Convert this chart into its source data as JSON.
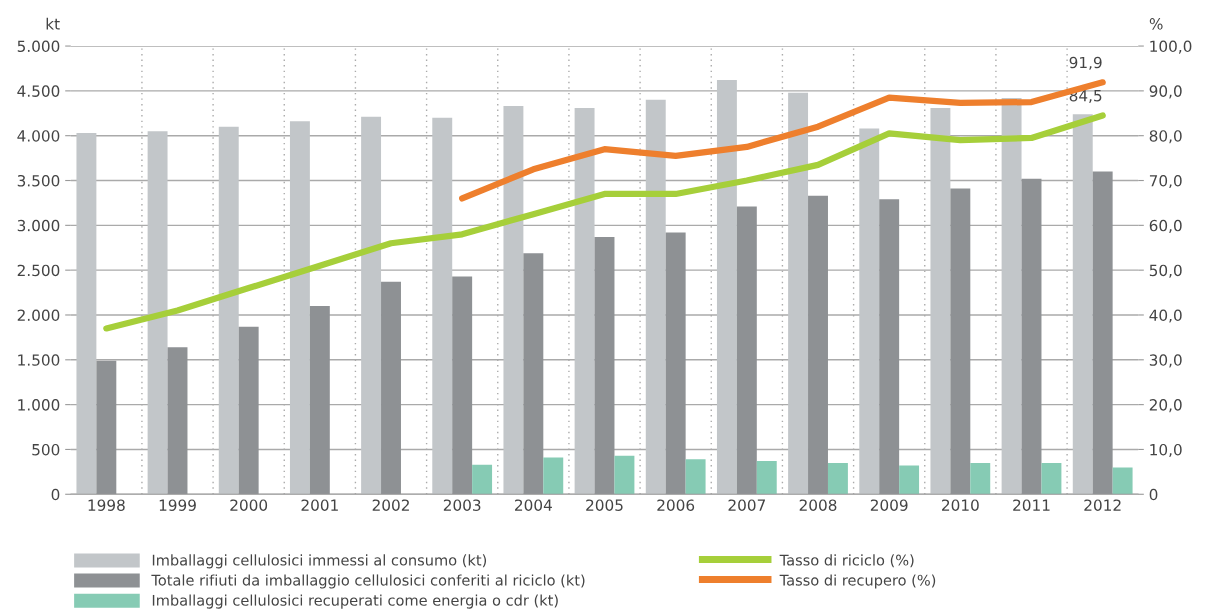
{
  "chart_data": {
    "type": "bar",
    "ylabel": "kt",
    "y2label": "%",
    "categories": [
      "1998",
      "1999",
      "2000",
      "2001",
      "2002",
      "2003",
      "2004",
      "2005",
      "2006",
      "2007",
      "2008",
      "2009",
      "2010",
      "2011",
      "2012"
    ],
    "series": [
      {
        "name": "Imballaggi cellulosici immessi al consumo (kt)",
        "color": "#c2c6c9",
        "values": [
          4030,
          4050,
          4100,
          4160,
          4210,
          4200,
          4330,
          4310,
          4400,
          4620,
          4480,
          4080,
          4310,
          4420,
          4240
        ]
      },
      {
        "name": "Totale rifiuti da imballaggio cellulosici conferiti al riciclo (kt)",
        "color": "#8e9194",
        "values": [
          1490,
          1640,
          1870,
          2100,
          2370,
          2430,
          2690,
          2870,
          2920,
          3210,
          3330,
          3290,
          3410,
          3520,
          3600
        ]
      },
      {
        "name": "Imballaggi cellulosici recuperati come energia o cdr (kt)",
        "color": "#86cbb4",
        "values": [
          null,
          null,
          null,
          null,
          null,
          330,
          410,
          430,
          390,
          370,
          350,
          320,
          350,
          350,
          300
        ]
      },
      {
        "name": "Tasso di riciclo (%)",
        "type": "line",
        "axis": "y2",
        "color": "#a6cf3a",
        "values": [
          37.0,
          41.0,
          46.0,
          51.0,
          56.0,
          58.0,
          62.5,
          67.0,
          67.0,
          70.0,
          73.5,
          80.5,
          79.0,
          79.5,
          84.5
        ],
        "value_labels": [
          null,
          null,
          null,
          null,
          null,
          null,
          null,
          null,
          null,
          null,
          null,
          null,
          null,
          null,
          "84,5"
        ]
      },
      {
        "name": "Tasso di recupero (%)",
        "type": "line",
        "axis": "y2",
        "color": "#ee7f2d",
        "values": [
          null,
          null,
          null,
          null,
          null,
          66.0,
          72.5,
          77.0,
          75.5,
          77.5,
          82.0,
          88.5,
          87.3,
          87.5,
          91.9
        ],
        "value_labels": [
          null,
          null,
          null,
          null,
          null,
          null,
          null,
          null,
          null,
          null,
          null,
          null,
          null,
          null,
          "91,9"
        ]
      }
    ],
    "ylim": [
      0,
      5000
    ],
    "yticks": [
      {
        "value": 0,
        "label": "0"
      },
      {
        "value": 500,
        "label": "500"
      },
      {
        "value": 1000,
        "label": "1.000"
      },
      {
        "value": 1500,
        "label": "1.500"
      },
      {
        "value": 2000,
        "label": "2.000"
      },
      {
        "value": 2500,
        "label": "2.500"
      },
      {
        "value": 3000,
        "label": "3.000"
      },
      {
        "value": 3500,
        "label": "3.500"
      },
      {
        "value": 4000,
        "label": "4.000"
      },
      {
        "value": 4500,
        "label": "4.500"
      },
      {
        "value": 5000,
        "label": "5.000"
      }
    ],
    "y2lim": [
      0,
      100
    ],
    "y2ticks": [
      {
        "value": 0,
        "label": "0"
      },
      {
        "value": 10,
        "label": "10,0"
      },
      {
        "value": 20,
        "label": "20,0"
      },
      {
        "value": 30,
        "label": "30,0"
      },
      {
        "value": 40,
        "label": "40,0"
      },
      {
        "value": 50,
        "label": "50,0"
      },
      {
        "value": 60,
        "label": "60,0"
      },
      {
        "value": 70,
        "label": "70,0"
      },
      {
        "value": 80,
        "label": "80,0"
      },
      {
        "value": 90,
        "label": "90,0"
      },
      {
        "value": 100,
        "label": "100,0"
      }
    ],
    "grid": true,
    "legend": "bottom"
  }
}
